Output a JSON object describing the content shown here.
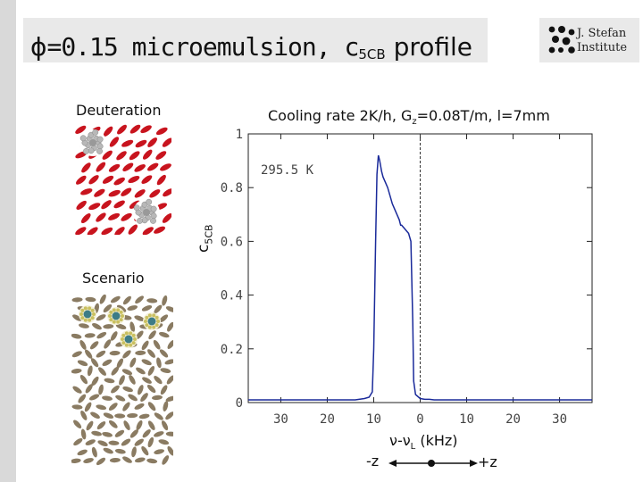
{
  "slide": {
    "title_symbol": "ϕ",
    "title_equals": "=0.15 microemulsion, c",
    "title_sub": "5CB",
    "title_tail": " profile",
    "logo_line1": "J. Stefan",
    "logo_line2": "Institute",
    "deuteration_label": "Deuteration",
    "scenario_label": "Scenario",
    "direction_minus": "-z",
    "direction_plus": "+z"
  },
  "chart_data": {
    "type": "line",
    "title_main": "Cooling rate 2K/h, G",
    "title_sub": "z",
    "title_tail": "=0.08T/m, l=7mm",
    "ylabel_main": "c",
    "ylabel_sub": "5CB",
    "xlabel_main": "ν-ν",
    "xlabel_sub": "L",
    "xlabel_tail": " (kHz)",
    "annotation": "295.5 K",
    "xlim": [
      -37,
      37
    ],
    "ylim": [
      0,
      1
    ],
    "xticks": [
      -30,
      -20,
      -10,
      0,
      10,
      20,
      30
    ],
    "xtick_labels": [
      "30",
      "20",
      "10",
      "0",
      "10",
      "20",
      "30"
    ],
    "yticks": [
      0,
      0.2,
      0.4,
      0.6,
      0.8,
      1
    ],
    "ytick_labels": [
      "0",
      "0.2",
      "0.4",
      "0.6",
      "0.8",
      "1"
    ],
    "vline_x": 0,
    "color": "#1a2a9a",
    "series": [
      {
        "x": [
          -37,
          -30,
          -20,
          -14,
          -12,
          -11,
          -10.3,
          -10,
          -9.6,
          -9.3,
          -9.0,
          -8.7,
          -8.3,
          -8.0,
          -7.5,
          -7.0,
          -6.5,
          -6.0,
          -5.5,
          -5.0,
          -4.5,
          -4.2,
          -4.0,
          -3.5,
          -3.0,
          -2.5,
          -2.0,
          -1.6,
          -1.4,
          -1.0,
          0.0,
          1.0,
          2.0,
          3.0,
          5.0,
          10,
          20,
          30,
          37
        ],
        "y": [
          0.01,
          0.01,
          0.01,
          0.01,
          0.015,
          0.02,
          0.04,
          0.2,
          0.6,
          0.85,
          0.92,
          0.9,
          0.86,
          0.84,
          0.82,
          0.8,
          0.77,
          0.74,
          0.72,
          0.7,
          0.68,
          0.66,
          0.66,
          0.65,
          0.64,
          0.63,
          0.6,
          0.3,
          0.08,
          0.03,
          0.015,
          0.012,
          0.012,
          0.01,
          0.01,
          0.01,
          0.01,
          0.01,
          0.01
        ]
      }
    ]
  }
}
